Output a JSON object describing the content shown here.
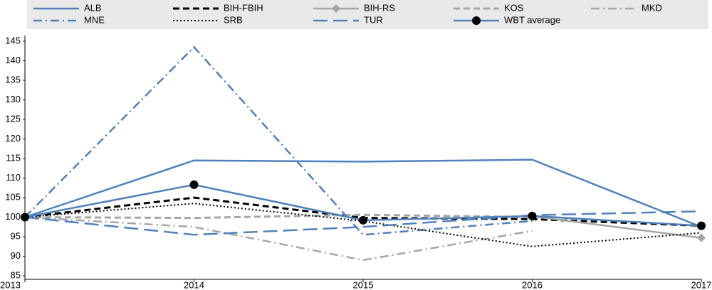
{
  "chart_data": {
    "type": "line",
    "x": [
      2013,
      2014,
      2015,
      2016,
      2017
    ],
    "xlim": [
      2013,
      2017
    ],
    "xticks": [
      2013,
      2014,
      2015,
      2016,
      2017
    ],
    "ylim": [
      85,
      145
    ],
    "yticks": [
      85,
      90,
      95,
      100,
      105,
      110,
      115,
      120,
      125,
      130,
      135,
      140,
      145
    ],
    "grid": false,
    "legend": "top",
    "series": [
      {
        "name": "ALB",
        "color": "#4f81bd",
        "style": "solid",
        "width": 2.5,
        "values": [
          100,
          114.5,
          114.2,
          114.7,
          97.5
        ]
      },
      {
        "name": "BIH-FBIH",
        "color": "#000000",
        "style": "dashed",
        "width": 3,
        "values": [
          100,
          105,
          99.8,
          99.5,
          97.8
        ]
      },
      {
        "name": "BIH-RS",
        "color": "#a6a6a6",
        "style": "solid",
        "width": 2.5,
        "marker": "diamond",
        "values": [
          null,
          null,
          null,
          100.2,
          94.7
        ]
      },
      {
        "name": "KOS",
        "color": "#a6a6a6",
        "style": "dashed",
        "width": 3,
        "values": [
          100,
          99.8,
          100.6,
          100,
          null
        ]
      },
      {
        "name": "MKD",
        "color": "#a6a6a6",
        "style": "dashdot",
        "width": 2.5,
        "values": [
          100,
          97.5,
          89,
          96.5,
          null
        ]
      },
      {
        "name": "MNE",
        "color": "#4f81bd",
        "style": "dashdot",
        "width": 2.5,
        "values": [
          100,
          143.5,
          95.5,
          99,
          null
        ]
      },
      {
        "name": "SRB",
        "color": "#000000",
        "style": "dotted",
        "width": 2,
        "values": [
          100,
          103.5,
          99,
          92.5,
          96
        ]
      },
      {
        "name": "TUR",
        "color": "#4f81bd",
        "style": "longdash",
        "width": 2.5,
        "values": [
          100,
          95.5,
          97.5,
          100.5,
          101.5
        ]
      },
      {
        "name": "WBT average",
        "color": "#4f81bd",
        "style": "solid",
        "width": 2.5,
        "marker": "circle",
        "markerColor": "#000000",
        "values": [
          100,
          108.3,
          99.2,
          100.3,
          97.8
        ]
      }
    ]
  }
}
